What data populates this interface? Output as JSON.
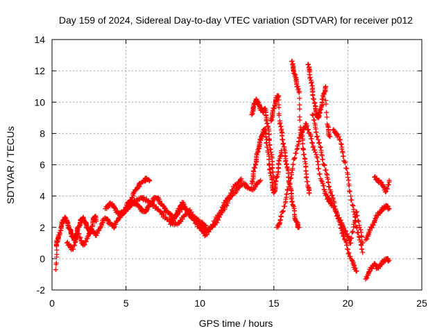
{
  "chart_data": {
    "type": "scatter",
    "title": "Day 159 of 2024, Sidereal Day-to-day VTEC variation (SDTVAR) for receiver p012",
    "xlabel": "GPS time / hours",
    "ylabel": "SDTVAR / TECUs",
    "xlim": [
      0,
      25
    ],
    "ylim": [
      -2,
      14
    ],
    "xticks": [
      0,
      5,
      10,
      15,
      20,
      25
    ],
    "yticks": [
      -2,
      0,
      2,
      4,
      6,
      8,
      10,
      12,
      14
    ],
    "grid": true,
    "marker": "+",
    "colors": {
      "series": "#ff0000",
      "grid": "#a0a0a0",
      "axis": "#000000"
    },
    "series": [
      {
        "x": [
          0.25,
          0.3,
          0.35,
          0.4,
          0.5,
          0.6,
          0.7,
          0.8,
          0.9,
          1.0,
          1.1,
          1.2,
          1.3,
          1.4,
          1.5,
          1.6,
          1.7,
          1.8,
          1.9,
          2.0,
          2.1,
          2.2,
          2.3,
          2.4,
          2.5,
          2.6,
          2.7,
          2.8,
          2.9,
          3.0
        ],
        "y": [
          -0.7,
          0.8,
          1.1,
          1.3,
          1.5,
          2.0,
          2.3,
          2.5,
          2.6,
          2.4,
          2.1,
          1.9,
          1.6,
          1.4,
          1.2,
          1.5,
          1.8,
          2.0,
          2.3,
          2.5,
          2.6,
          2.4,
          2.2,
          2.0,
          1.8,
          1.6,
          2.1,
          2.5,
          2.7,
          2.4
        ]
      },
      {
        "x": [
          1.0,
          1.2,
          1.4,
          1.6,
          1.8,
          2.0,
          2.2,
          2.4,
          2.6,
          2.8,
          3.0,
          3.2,
          3.4,
          3.6,
          3.8,
          4.0,
          4.2,
          4.4,
          4.6,
          4.8,
          5.0,
          5.2,
          5.4,
          5.6,
          5.8,
          6.0,
          6.2,
          6.4,
          6.6
        ],
        "y": [
          1.0,
          0.8,
          0.6,
          1.2,
          1.6,
          1.0,
          0.9,
          1.4,
          1.9,
          1.7,
          1.5,
          1.9,
          2.3,
          2.6,
          2.4,
          2.2,
          2.0,
          2.4,
          2.8,
          3.0,
          3.3,
          3.6,
          3.9,
          4.3,
          4.6,
          4.8,
          5.0,
          5.1,
          5.0
        ]
      },
      {
        "x": [
          3.6,
          3.8,
          4.0,
          4.2,
          4.4,
          4.6,
          4.8,
          5.0,
          5.2,
          5.4,
          5.6,
          5.8,
          6.0,
          6.2,
          6.4,
          6.6,
          6.8,
          7.0,
          7.2,
          7.4,
          7.6,
          7.8,
          8.0,
          8.2,
          8.4,
          8.6,
          8.8,
          9.0,
          9.2,
          9.4,
          9.6,
          9.8,
          10.0,
          10.2,
          10.4
        ],
        "y": [
          3.2,
          3.4,
          3.5,
          3.3,
          3.0,
          2.8,
          2.9,
          3.1,
          3.3,
          3.5,
          3.6,
          3.4,
          3.2,
          3.0,
          3.1,
          3.4,
          3.7,
          3.9,
          3.8,
          3.5,
          3.2,
          3.0,
          2.8,
          2.6,
          2.8,
          3.2,
          3.6,
          3.3,
          2.9,
          2.7,
          2.5,
          2.4,
          2.3,
          2.2,
          2.1
        ]
      },
      {
        "x": [
          4.5,
          4.8,
          5.1,
          5.4,
          5.7,
          6.0,
          6.3,
          6.6,
          6.9,
          7.2,
          7.5,
          7.8,
          8.1,
          8.4,
          8.7,
          9.0,
          9.3,
          9.6,
          9.9,
          10.2,
          10.5,
          10.8,
          11.1,
          11.4,
          11.7,
          12.0,
          12.3,
          12.6,
          12.9,
          13.2,
          13.5,
          13.8,
          14.1
        ],
        "y": [
          2.6,
          2.9,
          3.2,
          3.5,
          3.7,
          3.9,
          3.8,
          3.6,
          3.4,
          3.1,
          2.8,
          2.5,
          2.3,
          2.2,
          2.4,
          2.8,
          3.1,
          2.7,
          2.4,
          2.0,
          1.8,
          2.0,
          2.3,
          2.8,
          3.3,
          3.8,
          4.2,
          4.5,
          4.8,
          4.6,
          4.4,
          4.7,
          5.0
        ]
      },
      {
        "x": [
          8.0,
          8.3,
          8.6,
          8.9,
          9.2,
          9.5,
          9.8,
          10.1,
          10.4,
          10.7,
          11.0,
          11.3,
          11.6,
          11.9,
          12.2,
          12.5,
          12.8
        ],
        "y": [
          2.2,
          2.6,
          3.0,
          3.4,
          3.0,
          2.6,
          2.2,
          1.8,
          1.5,
          1.9,
          2.4,
          2.9,
          3.4,
          3.9,
          4.4,
          4.8,
          5.1
        ]
      },
      {
        "x": [
          13.5,
          13.6,
          13.7,
          13.8,
          13.9,
          14.0,
          14.1,
          14.2,
          14.3,
          14.4,
          14.5,
          14.6,
          14.7,
          14.8,
          14.9,
          15.0,
          15.1,
          15.2,
          15.3,
          15.4,
          15.5
        ],
        "y": [
          4.8,
          5.3,
          5.8,
          6.3,
          6.8,
          7.2,
          7.6,
          7.9,
          8.1,
          8.3,
          7.6,
          6.8,
          6.0,
          5.3,
          4.7,
          4.2,
          4.6,
          5.2,
          5.8,
          6.4,
          6.9
        ]
      },
      {
        "x": [
          13.5,
          13.6,
          13.7,
          13.8,
          13.9,
          14.0,
          14.1,
          14.2,
          14.3,
          14.4,
          14.5,
          14.6,
          14.7,
          14.8,
          14.9,
          15.0
        ],
        "y": [
          9.2,
          9.6,
          9.9,
          10.2,
          10.0,
          9.8,
          9.6,
          9.5,
          9.4,
          9.6,
          9.0,
          8.4,
          7.6,
          6.8,
          6.0,
          5.2
        ]
      },
      {
        "x": [
          14.8,
          14.9,
          15.0,
          15.1,
          15.2,
          15.3,
          15.4,
          15.5,
          15.6,
          15.7,
          15.8,
          15.9,
          16.0,
          16.1,
          16.2,
          16.3,
          16.4,
          16.5,
          16.6,
          16.7
        ],
        "y": [
          8.8,
          9.2,
          9.6,
          10.0,
          10.3,
          10.4,
          8.8,
          8.2,
          7.6,
          7.0,
          6.4,
          5.8,
          5.2,
          4.6,
          4.0,
          3.4,
          2.8,
          2.4,
          2.2,
          2.0
        ]
      },
      {
        "x": [
          15.2,
          15.4,
          15.6,
          15.8,
          16.0,
          16.2,
          16.4,
          16.6,
          16.8,
          17.0,
          17.2,
          17.4,
          17.6,
          17.8,
          18.0,
          18.2,
          18.4,
          18.6,
          18.8
        ],
        "y": [
          2.0,
          2.3,
          3.0,
          3.8,
          4.6,
          5.5,
          6.4,
          7.2,
          7.9,
          8.3,
          8.6,
          8.0,
          7.4,
          6.8,
          6.0,
          5.0,
          4.4,
          4.0,
          3.6
        ]
      },
      {
        "x": [
          16.2,
          16.3,
          16.4,
          16.5,
          16.6,
          16.7,
          16.8,
          16.9,
          17.0,
          17.1,
          17.2,
          17.3,
          17.4
        ],
        "y": [
          12.6,
          12.2,
          11.8,
          11.4,
          11.0,
          10.6,
          8.4,
          7.8,
          7.0,
          6.2,
          5.4,
          4.6,
          4.2
        ]
      },
      {
        "x": [
          17.3,
          17.4,
          17.5,
          17.6,
          17.7,
          17.8,
          17.9,
          18.0,
          18.1,
          18.2,
          18.3,
          18.4,
          18.5,
          18.6,
          18.7,
          18.8
        ],
        "y": [
          12.4,
          12.0,
          11.4,
          10.8,
          10.2,
          9.6,
          9.2,
          9.0,
          9.3,
          9.7,
          10.2,
          10.6,
          11.0,
          8.6,
          8.1,
          7.8
        ]
      },
      {
        "x": [
          17.6,
          17.8,
          18.0,
          18.2,
          18.4,
          18.6,
          18.8,
          19.0,
          19.2,
          19.4,
          19.6,
          19.8,
          20.0,
          20.2,
          20.4,
          20.6
        ],
        "y": [
          9.2,
          8.4,
          7.6,
          6.8,
          6.0,
          5.2,
          4.4,
          3.8,
          3.0,
          2.4,
          1.8,
          1.2,
          0.6,
          0.0,
          -0.4,
          -0.8
        ]
      },
      {
        "x": [
          18.6,
          18.8,
          19.0,
          19.2,
          19.4,
          19.6,
          19.8,
          20.0,
          20.2,
          20.4,
          20.6,
          20.8,
          21.0
        ],
        "y": [
          3.8,
          3.6,
          3.4,
          3.0,
          2.6,
          2.2,
          1.8,
          1.4,
          1.0,
          2.2,
          3.0,
          2.0,
          1.0
        ]
      },
      {
        "x": [
          19.0,
          19.2,
          19.4,
          19.6,
          19.8,
          20.0,
          20.2,
          20.4,
          20.6,
          20.8,
          21.0
        ],
        "y": [
          8.2,
          8.0,
          7.8,
          7.0,
          6.2,
          5.2,
          4.0,
          3.0,
          2.0,
          1.2,
          0.4
        ]
      },
      {
        "x": [
          21.2,
          21.4,
          21.6,
          21.8,
          22.0,
          22.2,
          22.4,
          22.6,
          22.8
        ],
        "y": [
          -1.3,
          -0.9,
          -0.6,
          -0.3,
          -0.6,
          -0.4,
          -0.2,
          0.0,
          -0.1
        ]
      },
      {
        "x": [
          21.2,
          21.4,
          21.6,
          21.8,
          22.0,
          22.2,
          22.4,
          22.6,
          22.8
        ],
        "y": [
          1.2,
          1.6,
          2.0,
          2.4,
          2.8,
          3.0,
          3.2,
          3.4,
          3.2
        ]
      },
      {
        "x": [
          21.8,
          22.0,
          22.2,
          22.4,
          22.6,
          22.8
        ],
        "y": [
          5.2,
          5.0,
          4.9,
          4.6,
          4.3,
          5.0
        ]
      }
    ]
  }
}
